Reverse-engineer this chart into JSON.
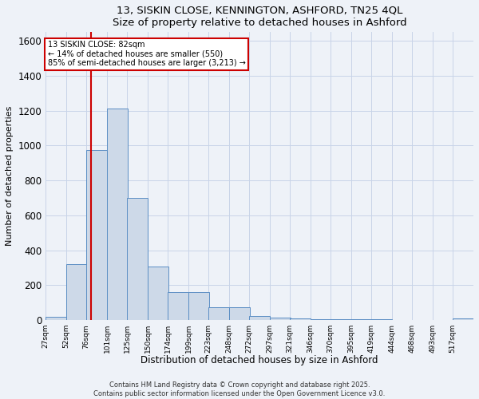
{
  "title_line1": "13, SISKIN CLOSE, KENNINGTON, ASHFORD, TN25 4QL",
  "title_line2": "Size of property relative to detached houses in Ashford",
  "xlabel": "Distribution of detached houses by size in Ashford",
  "ylabel": "Number of detached properties",
  "bar_color": "#cdd9e8",
  "bar_edge_color": "#5b8ec4",
  "grid_color": "#c8d4e8",
  "background_color": "#eef2f8",
  "bins": [
    27,
    52,
    76,
    101,
    125,
    150,
    174,
    199,
    223,
    248,
    272,
    297,
    321,
    346,
    370,
    395,
    419,
    444,
    468,
    493,
    517
  ],
  "bar_heights": [
    20,
    320,
    975,
    1210,
    700,
    305,
    160,
    160,
    75,
    75,
    25,
    15,
    8,
    5,
    5,
    3,
    3,
    1,
    1,
    1,
    8
  ],
  "tick_labels": [
    "27sqm",
    "52sqm",
    "76sqm",
    "101sqm",
    "125sqm",
    "150sqm",
    "174sqm",
    "199sqm",
    "223sqm",
    "248sqm",
    "272sqm",
    "297sqm",
    "321sqm",
    "346sqm",
    "370sqm",
    "395sqm",
    "419sqm",
    "444sqm",
    "468sqm",
    "493sqm",
    "517sqm"
  ],
  "red_line_x": 82,
  "annotation_title": "13 SISKIN CLOSE: 82sqm",
  "annotation_line2": "← 14% of detached houses are smaller (550)",
  "annotation_line3": "85% of semi-detached houses are larger (3,213) →",
  "annotation_box_color": "#ffffff",
  "annotation_border_color": "#cc0000",
  "red_line_color": "#cc0000",
  "ylim": [
    0,
    1650
  ],
  "yticks": [
    0,
    200,
    400,
    600,
    800,
    1000,
    1200,
    1400,
    1600
  ],
  "footer_line1": "Contains HM Land Registry data © Crown copyright and database right 2025.",
  "footer_line2": "Contains public sector information licensed under the Open Government Licence v3.0."
}
